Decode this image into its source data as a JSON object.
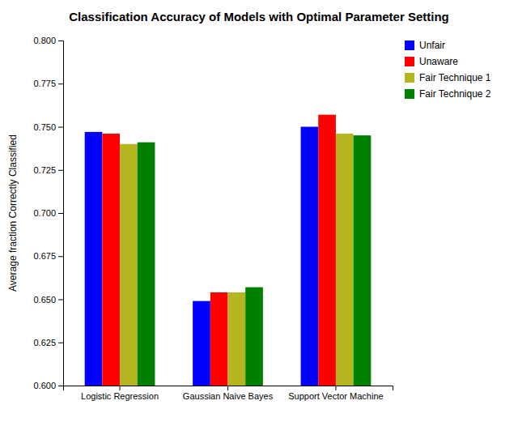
{
  "chart_data": {
    "type": "bar",
    "title": "Classification Accuracy of Models with Optimal Parameter Setting",
    "ylabel": "Average fraction Correctly Classified",
    "categories": [
      "Logistic Regression",
      "Gaussian Naive Bayes",
      "Support Vector Machine"
    ],
    "series": [
      {
        "name": "Unfair",
        "color": "#0000ff",
        "values": [
          0.747,
          0.649,
          0.75
        ]
      },
      {
        "name": "Unaware",
        "color": "#ff0000",
        "values": [
          0.746,
          0.654,
          0.757
        ]
      },
      {
        "name": "Fair Technique 1",
        "color": "#b5b520",
        "values": [
          0.74,
          0.654,
          0.746
        ]
      },
      {
        "name": "Fair Technique 2",
        "color": "#008000",
        "values": [
          0.741,
          0.657,
          0.745
        ]
      }
    ],
    "ylim": [
      0.6,
      0.8
    ],
    "yticks": [
      {
        "value": 0.6,
        "label": "0.600"
      },
      0.625,
      {
        "value": 0.65,
        "label": "0.650"
      },
      0.675,
      {
        "value": 0.7,
        "label": "0.700"
      },
      0.725,
      {
        "value": 0.75,
        "label": "0.750"
      },
      0.775,
      {
        "value": 0.8,
        "label": "0.800"
      }
    ],
    "legend": "upper right"
  }
}
